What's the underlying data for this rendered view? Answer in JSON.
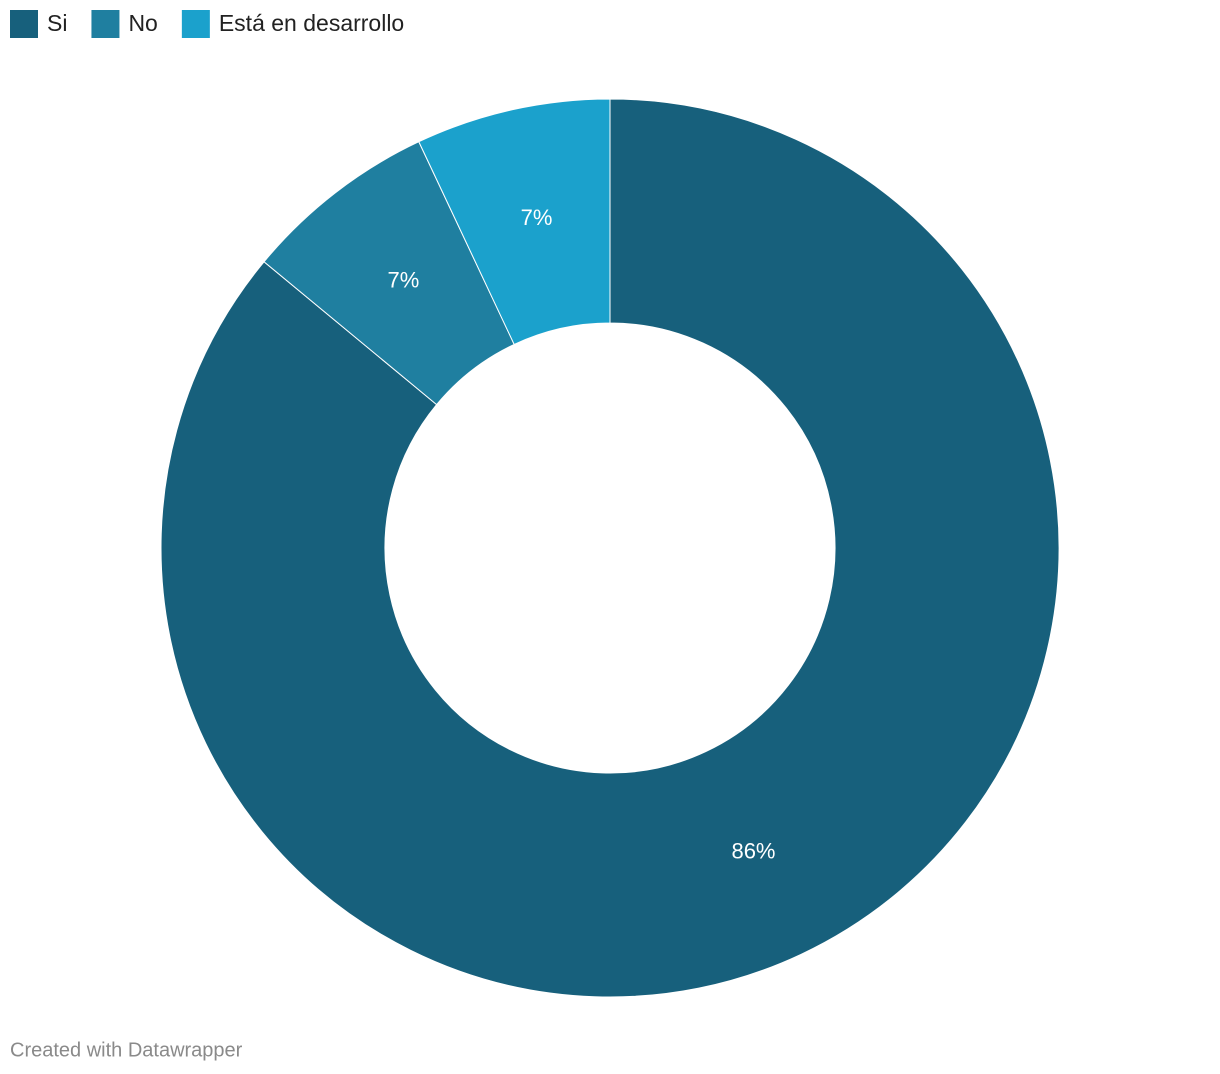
{
  "chart_data": {
    "type": "donut",
    "series": [
      {
        "name": "Si",
        "color": "#17607c"
      },
      {
        "name": "No",
        "color": "#1f7fa0"
      },
      {
        "name": "Está en desarrollo",
        "color": "#1ba1cc"
      }
    ],
    "categories": [
      "Si",
      "No",
      "Está en desarrollo"
    ],
    "values": [
      86,
      7,
      7
    ],
    "value_labels": [
      "86%",
      "7%",
      "7%"
    ],
    "colors": [
      "#17607c",
      "#1f7fa0",
      "#1ba1cc"
    ]
  },
  "footer": "Created with Datawrapper"
}
